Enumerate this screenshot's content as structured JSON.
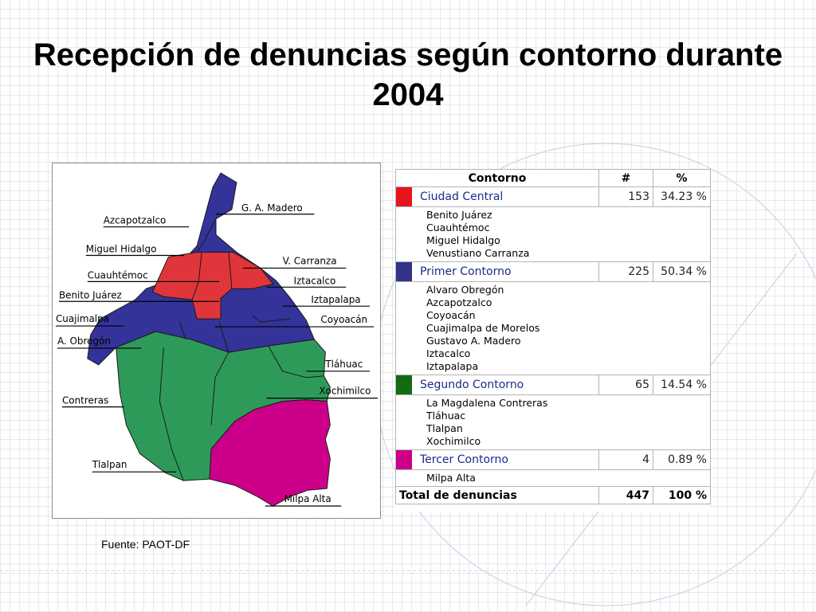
{
  "title": "Recepción de denuncias según contorno durante 2004",
  "source": "Fuente: PAOT-DF",
  "colors": {
    "ciudad_central": "#e0353a",
    "primer_contorno": "#333399",
    "segundo_contorno": "#2e9a5a",
    "tercer_contorno": "#cc0088"
  },
  "map_labels": [
    "G. A. Madero",
    "Azcapotzalco",
    "Miguel Hidalgo",
    "V. Carranza",
    "Cuauhtémoc",
    "Iztacalco",
    "Benito Juárez",
    "Iztapalapa",
    "Cuajimalpa",
    "Coyoacán",
    "A. Obregón",
    "Tláhuac",
    "Xochimilco",
    "Contreras",
    "Tlalpan",
    "Milpa Alta"
  ],
  "table": {
    "headers": {
      "name": "Contorno",
      "count": "#",
      "percent": "%"
    },
    "groups": [
      {
        "name": "Ciudad Central",
        "count": "153",
        "percent": "34.23 %",
        "swatch": "#e8141c",
        "members": [
          "Benito Juárez",
          "Cuauhtémoc",
          "Miguel Hidalgo",
          "Venustiano Carranza"
        ]
      },
      {
        "name": "Primer Contorno",
        "count": "225",
        "percent": "50.34 %",
        "swatch": "#33338a",
        "members": [
          "Alvaro Obregón",
          "Azcapotzalco",
          "Coyoacán",
          "Cuajimalpa de Morelos",
          "Gustavo A. Madero",
          "Iztacalco",
          "Iztapalapa"
        ]
      },
      {
        "name": "Segundo Contorno",
        "count": "65",
        "percent": "14.54 %",
        "swatch": "#136b13",
        "members": [
          "La Magdalena Contreras",
          "Tláhuac",
          "Tlalpan",
          "Xochimilco"
        ]
      },
      {
        "name": "Tercer Contorno",
        "count": "4",
        "percent": "0.89 %",
        "swatch": "#cc0088",
        "members": [
          "Milpa Alta"
        ]
      }
    ],
    "total": {
      "label": "Total de denuncias",
      "count": "447",
      "percent": "100 %"
    }
  }
}
